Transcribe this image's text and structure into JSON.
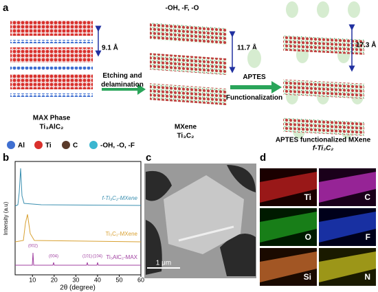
{
  "panel_a": {
    "label": "a",
    "spacings": [
      "9.1 Å",
      "11.7 Å",
      "17.3 Å"
    ],
    "terminations": "-OH, -F, -O",
    "step1": "Etching and delamination",
    "step2": "APTES Functionalization",
    "max_name": "MAX Phase",
    "max_formula": "Ti₃AlC₂",
    "mxene_name": "MXene",
    "mxene_formula": "Ti₃C₂",
    "func_name": "APTES functionalized MXene",
    "func_formula": "f-Ti₃C₂",
    "legend": [
      "Al",
      "Ti",
      "C",
      "-OH, -O, -F"
    ]
  },
  "panel_b": {
    "label": "b",
    "ylabel": "Intensity (a.u)",
    "xlabel": "2θ (degree)",
    "xlim": [
      2,
      60
    ],
    "xticks": [
      10,
      20,
      30,
      40,
      50,
      60
    ],
    "traces": [
      "f-Ti₃C₂-MXene",
      "Ti₃C₂-MXene",
      "Ti₃AlC₂-MAX"
    ],
    "peaks": [
      "(002)",
      "(004)",
      "(101)",
      "(104)"
    ]
  },
  "panel_c": {
    "label": "c",
    "scale": "1 μm"
  },
  "panel_d": {
    "label": "d",
    "maps": [
      "Ti",
      "C",
      "O",
      "F",
      "Si",
      "N"
    ]
  }
}
